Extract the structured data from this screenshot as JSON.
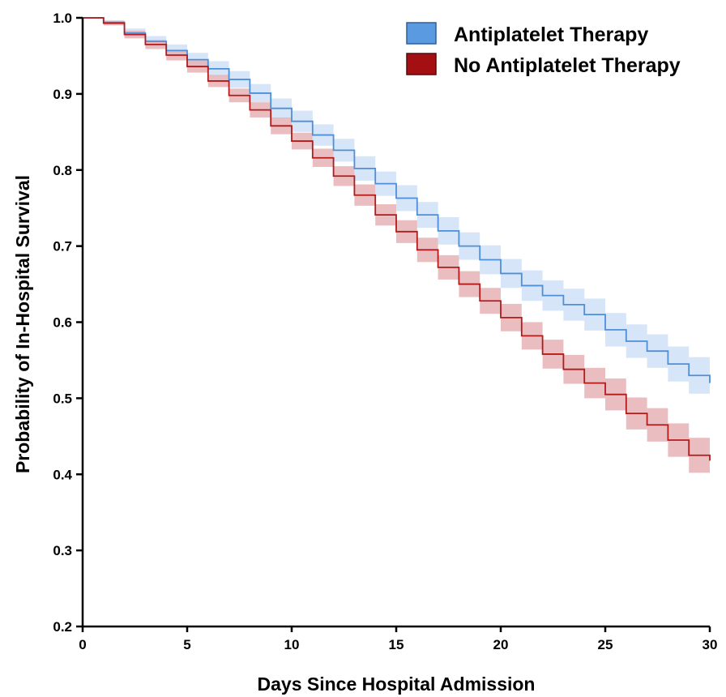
{
  "chart_data": {
    "type": "line",
    "title": "",
    "xlabel": "Days Since Hospital Admission",
    "ylabel": "Probability of In-Hospital Survival",
    "xlim": [
      0,
      30
    ],
    "ylim": [
      0.2,
      1.0
    ],
    "x_ticks": [
      "0",
      "5",
      "10",
      "15",
      "20",
      "25",
      "30"
    ],
    "y_ticks": [
      "0.2",
      "0.3",
      "0.4",
      "0.5",
      "0.6",
      "0.7",
      "0.8",
      "0.9",
      "1.0"
    ],
    "step": true,
    "x": [
      0,
      1,
      2,
      3,
      4,
      5,
      6,
      7,
      8,
      9,
      10,
      11,
      12,
      13,
      14,
      15,
      16,
      17,
      18,
      19,
      20,
      21,
      22,
      23,
      24,
      25,
      26,
      27,
      28,
      29,
      30
    ],
    "series": [
      {
        "name": "Antiplatelet Therapy",
        "color": "#4f8fd8",
        "band_color": "#cfe1f6",
        "values": [
          1.0,
          0.994,
          0.98,
          0.969,
          0.957,
          0.945,
          0.933,
          0.919,
          0.901,
          0.881,
          0.864,
          0.846,
          0.826,
          0.802,
          0.782,
          0.763,
          0.741,
          0.72,
          0.7,
          0.682,
          0.664,
          0.648,
          0.635,
          0.623,
          0.61,
          0.59,
          0.575,
          0.562,
          0.545,
          0.53,
          0.52
        ],
        "ci_half_width": [
          0.0,
          0.003,
          0.006,
          0.007,
          0.008,
          0.009,
          0.01,
          0.011,
          0.012,
          0.013,
          0.014,
          0.014,
          0.015,
          0.016,
          0.016,
          0.017,
          0.017,
          0.018,
          0.018,
          0.019,
          0.019,
          0.02,
          0.02,
          0.021,
          0.021,
          0.022,
          0.022,
          0.022,
          0.023,
          0.024,
          0.025
        ]
      },
      {
        "name": "No Antiplatelet Therapy",
        "color": "#b31b1b",
        "band_color": "#e6b3b5",
        "values": [
          1.0,
          0.993,
          0.978,
          0.965,
          0.951,
          0.936,
          0.917,
          0.898,
          0.879,
          0.858,
          0.838,
          0.816,
          0.792,
          0.767,
          0.741,
          0.719,
          0.695,
          0.672,
          0.65,
          0.628,
          0.606,
          0.582,
          0.558,
          0.538,
          0.52,
          0.505,
          0.48,
          0.465,
          0.445,
          0.425,
          0.418
        ],
        "ci_half_width": [
          0.0,
          0.003,
          0.005,
          0.006,
          0.007,
          0.008,
          0.008,
          0.009,
          0.01,
          0.011,
          0.011,
          0.012,
          0.013,
          0.014,
          0.014,
          0.015,
          0.016,
          0.016,
          0.017,
          0.017,
          0.018,
          0.018,
          0.019,
          0.019,
          0.02,
          0.021,
          0.021,
          0.022,
          0.022,
          0.023,
          0.023
        ]
      }
    ],
    "legend": {
      "position": "top-right",
      "entries": [
        {
          "label": "Antiplatelet Therapy",
          "color": "#5a9ae0"
        },
        {
          "label": "No Antiplatelet Therapy",
          "color": "#a30f12"
        }
      ]
    },
    "grid": false
  }
}
